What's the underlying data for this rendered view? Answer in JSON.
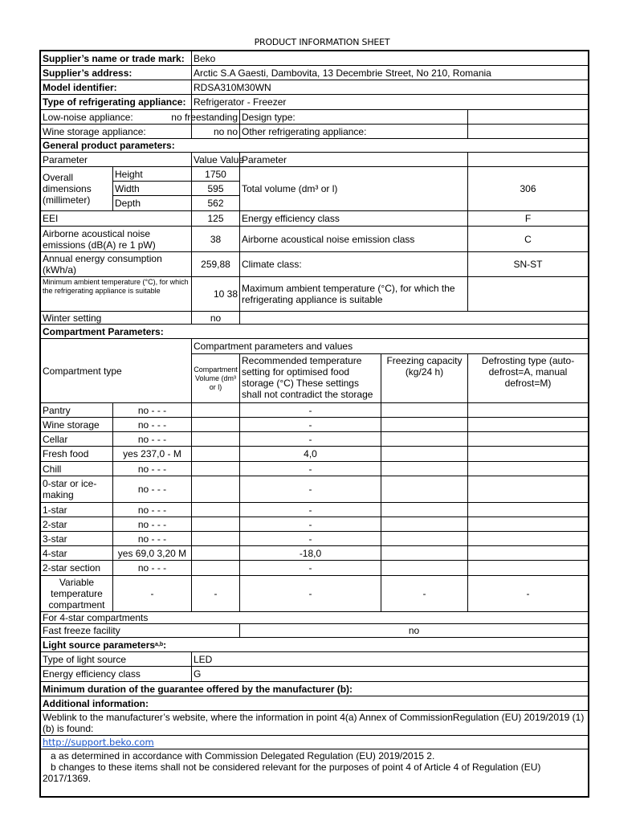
{
  "title": "PRODUCT INFORMATION SHEET",
  "supplier": {
    "name_label": "Supplier’s name or trade mark:",
    "name_value": "Beko",
    "address_label": "Supplier’s address:",
    "address_value": "Arctic S.A  Gaesti, Dambovita, 13 Decembrie Street, No 210, Romania",
    "model_label": "Model identifier:",
    "model_value": "RDSA310M30WN",
    "type_label": "Type of refrigerating appliance:",
    "type_value": "Refrigerator - Freezer"
  },
  "appliance": {
    "low_noise_label": "Low-noise appliance:",
    "low_noise_value": "no freestanding",
    "design_type_label": "Design type:",
    "wine_label": "Wine storage appliance:",
    "wine_value": "no no",
    "other_label": "Other refrigerating appliance:"
  },
  "general": {
    "heading": "General product parameters:",
    "col_parameter": "Parameter",
    "col_value": "Value   Value",
    "col_parameter2": "Parameter",
    "dimensions_label": "Overall dimensions (millimeter)",
    "height_label": "Height",
    "height_value": "1750",
    "width_label": "Width",
    "width_value": "595",
    "depth_label": "Depth",
    "depth_value": "562",
    "total_volume_label": "Total volume (dm³ or l)",
    "total_volume_value": "306",
    "eei_label": "EEI",
    "eei_value": "125",
    "energy_class_label": "Energy efficiency class",
    "energy_class_value": "F",
    "noise_label": "Airborne acoustical noise emissions (dB(A) re 1 pW)",
    "noise_value": "38",
    "noise_class_label": "Airborne acoustical noise emission class",
    "noise_class_value": "C",
    "annual_label": "Annual energy consumption (kWh/a)",
    "annual_value": "259,88",
    "climate_label": "Climate class:",
    "climate_value": "SN-ST",
    "min_temp_label": "Minimum ambient temperature (°C), for which the refrigerating appliance is suitable",
    "min_max_value": "10 38",
    "max_temp_label": "Maximum ambient temperature (°C), for which the refrigerating appliance is suitable",
    "winter_label": "Winter setting",
    "winter_value": "no"
  },
  "compartments": {
    "heading": "Compartment Parameters:",
    "type_header": "Compartment type",
    "params_header": "Compartment parameters and values",
    "volume_header": "Compartment Volume (dm³ or l)",
    "temp_header": "Recommended temperature setting for optimised food storage (°C) These settings shall not contradict the storage",
    "freezing_header": "Freezing capacity (kg/24 h)",
    "defrost_header": "Defrosting type (auto-defrost=A, manual defrost=M)",
    "rows": [
      {
        "name": "Pantry",
        "values": "no -  -  -",
        "temp": "-"
      },
      {
        "name": "Wine storage",
        "values": "no -  -  -",
        "temp": "-"
      },
      {
        "name": "Cellar",
        "values": "no -  -  -",
        "temp": "-"
      },
      {
        "name": "Fresh food",
        "values": "yes 237,0 -   M",
        "temp": "4,0"
      },
      {
        "name": "Chill",
        "values": "no -  -  -",
        "temp": "-"
      },
      {
        "name": "0-star or ice-making",
        "values": "no -  -  -",
        "temp": "-"
      },
      {
        "name": "1-star",
        "values": "no -  -  -",
        "temp": "-"
      },
      {
        "name": "2-star",
        "values": "no -  -  -",
        "temp": "-"
      },
      {
        "name": "3-star",
        "values": "no -  -  -",
        "temp": "-"
      },
      {
        "name": "4-star",
        "values": "yes 69,0 3,20 M",
        "temp": "-18,0"
      },
      {
        "name": "2-star section",
        "values": "no -  -  -",
        "temp": "-"
      }
    ],
    "variable": {
      "name": "Variable temperature compartment",
      "c1": "-",
      "c2": "-",
      "c3": "-",
      "c4": "-",
      "c5": "-"
    },
    "four_star_label": "For 4-star compartments",
    "fast_freeze_label": "Fast freeze facility",
    "fast_freeze_value": "no"
  },
  "light": {
    "heading": "Light source parameters",
    "heading_sup": "a,b",
    "heading_suffix": ":",
    "type_label": "Type of light source",
    "type_value": "LED",
    "class_label": "Energy efficiency class",
    "class_value": "G"
  },
  "guarantee_label": "Minimum duration of the guarantee offered by the manufacturer (b):",
  "additional": {
    "heading": "Additional information:",
    "weblink_text": "Weblink to the manufacturer’s website, where the information in point 4(a) Annex of CommissionRegulation (EU) 2019/2019 (1)(b) is found:",
    "url": "http://support.beko.com",
    "note_a": "   a as determined in accordance with Commission Delegated Regulation (EU) 2019/2015 2.",
    "note_b": "   b changes to these items shall not be considered relevant for the purposes of point 4 of Article 4 of Regulation (EU) 2017/1369."
  }
}
